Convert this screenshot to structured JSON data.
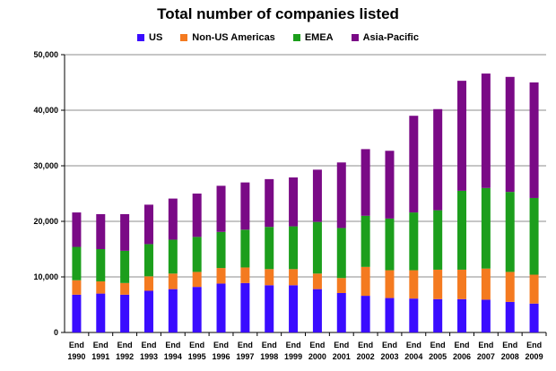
{
  "chart_data": {
    "type": "bar",
    "stacked": true,
    "title": "Total number of companies listed",
    "xlabel": "",
    "ylabel": "",
    "ylim": [
      0,
      50000
    ],
    "yticks": [
      0,
      10000,
      20000,
      30000,
      40000,
      50000
    ],
    "ytick_labels": [
      "0",
      "10,000",
      "20,000",
      "30,000",
      "40,000",
      "50,000"
    ],
    "grid": true,
    "legend_position": "top",
    "categories": [
      {
        "line1": "End",
        "line2": "1990"
      },
      {
        "line1": "End",
        "line2": "1991"
      },
      {
        "line1": "End",
        "line2": "1992"
      },
      {
        "line1": "End",
        "line2": "1993"
      },
      {
        "line1": "End",
        "line2": "1994"
      },
      {
        "line1": "End",
        "line2": "1995"
      },
      {
        "line1": "End",
        "line2": "1996"
      },
      {
        "line1": "End",
        "line2": "1997"
      },
      {
        "line1": "End",
        "line2": "1998"
      },
      {
        "line1": "End",
        "line2": "1999"
      },
      {
        "line1": "End",
        "line2": "2000"
      },
      {
        "line1": "End",
        "line2": "2001"
      },
      {
        "line1": "End",
        "line2": "2002"
      },
      {
        "line1": "End",
        "line2": "2003"
      },
      {
        "line1": "End",
        "line2": "2004"
      },
      {
        "line1": "End",
        "line2": "2005"
      },
      {
        "line1": "End",
        "line2": "2006"
      },
      {
        "line1": "End",
        "line2": "2007"
      },
      {
        "line1": "End",
        "line2": "2008"
      },
      {
        "line1": "End",
        "line2": "2009"
      }
    ],
    "series": [
      {
        "name": "US",
        "color": "#3a0cff",
        "values": [
          6800,
          7000,
          6800,
          7500,
          7800,
          8200,
          8800,
          8900,
          8500,
          8500,
          7800,
          7100,
          6600,
          6200,
          6100,
          6000,
          6000,
          5900,
          5500,
          5200
        ]
      },
      {
        "name": "Non-US Americas",
        "color": "#f47a20",
        "values": [
          2600,
          2200,
          2100,
          2600,
          2800,
          2700,
          2800,
          2800,
          2900,
          2900,
          2800,
          2700,
          5200,
          5000,
          5100,
          5300,
          5300,
          5600,
          5400,
          5200
        ]
      },
      {
        "name": "EMEA",
        "color": "#1c9e1c",
        "values": [
          6000,
          5800,
          5800,
          5800,
          6100,
          6300,
          6500,
          6800,
          7600,
          7700,
          9300,
          9000,
          9200,
          9300,
          10400,
          10700,
          14200,
          14500,
          14400,
          13800
        ]
      },
      {
        "name": "Asia-Pacific",
        "color": "#7a0a86",
        "values": [
          6200,
          6300,
          6600,
          7100,
          7400,
          7800,
          8300,
          8500,
          8600,
          8800,
          9400,
          11800,
          12000,
          12200,
          17400,
          18200,
          19800,
          20600,
          20700,
          20800
        ]
      }
    ]
  }
}
